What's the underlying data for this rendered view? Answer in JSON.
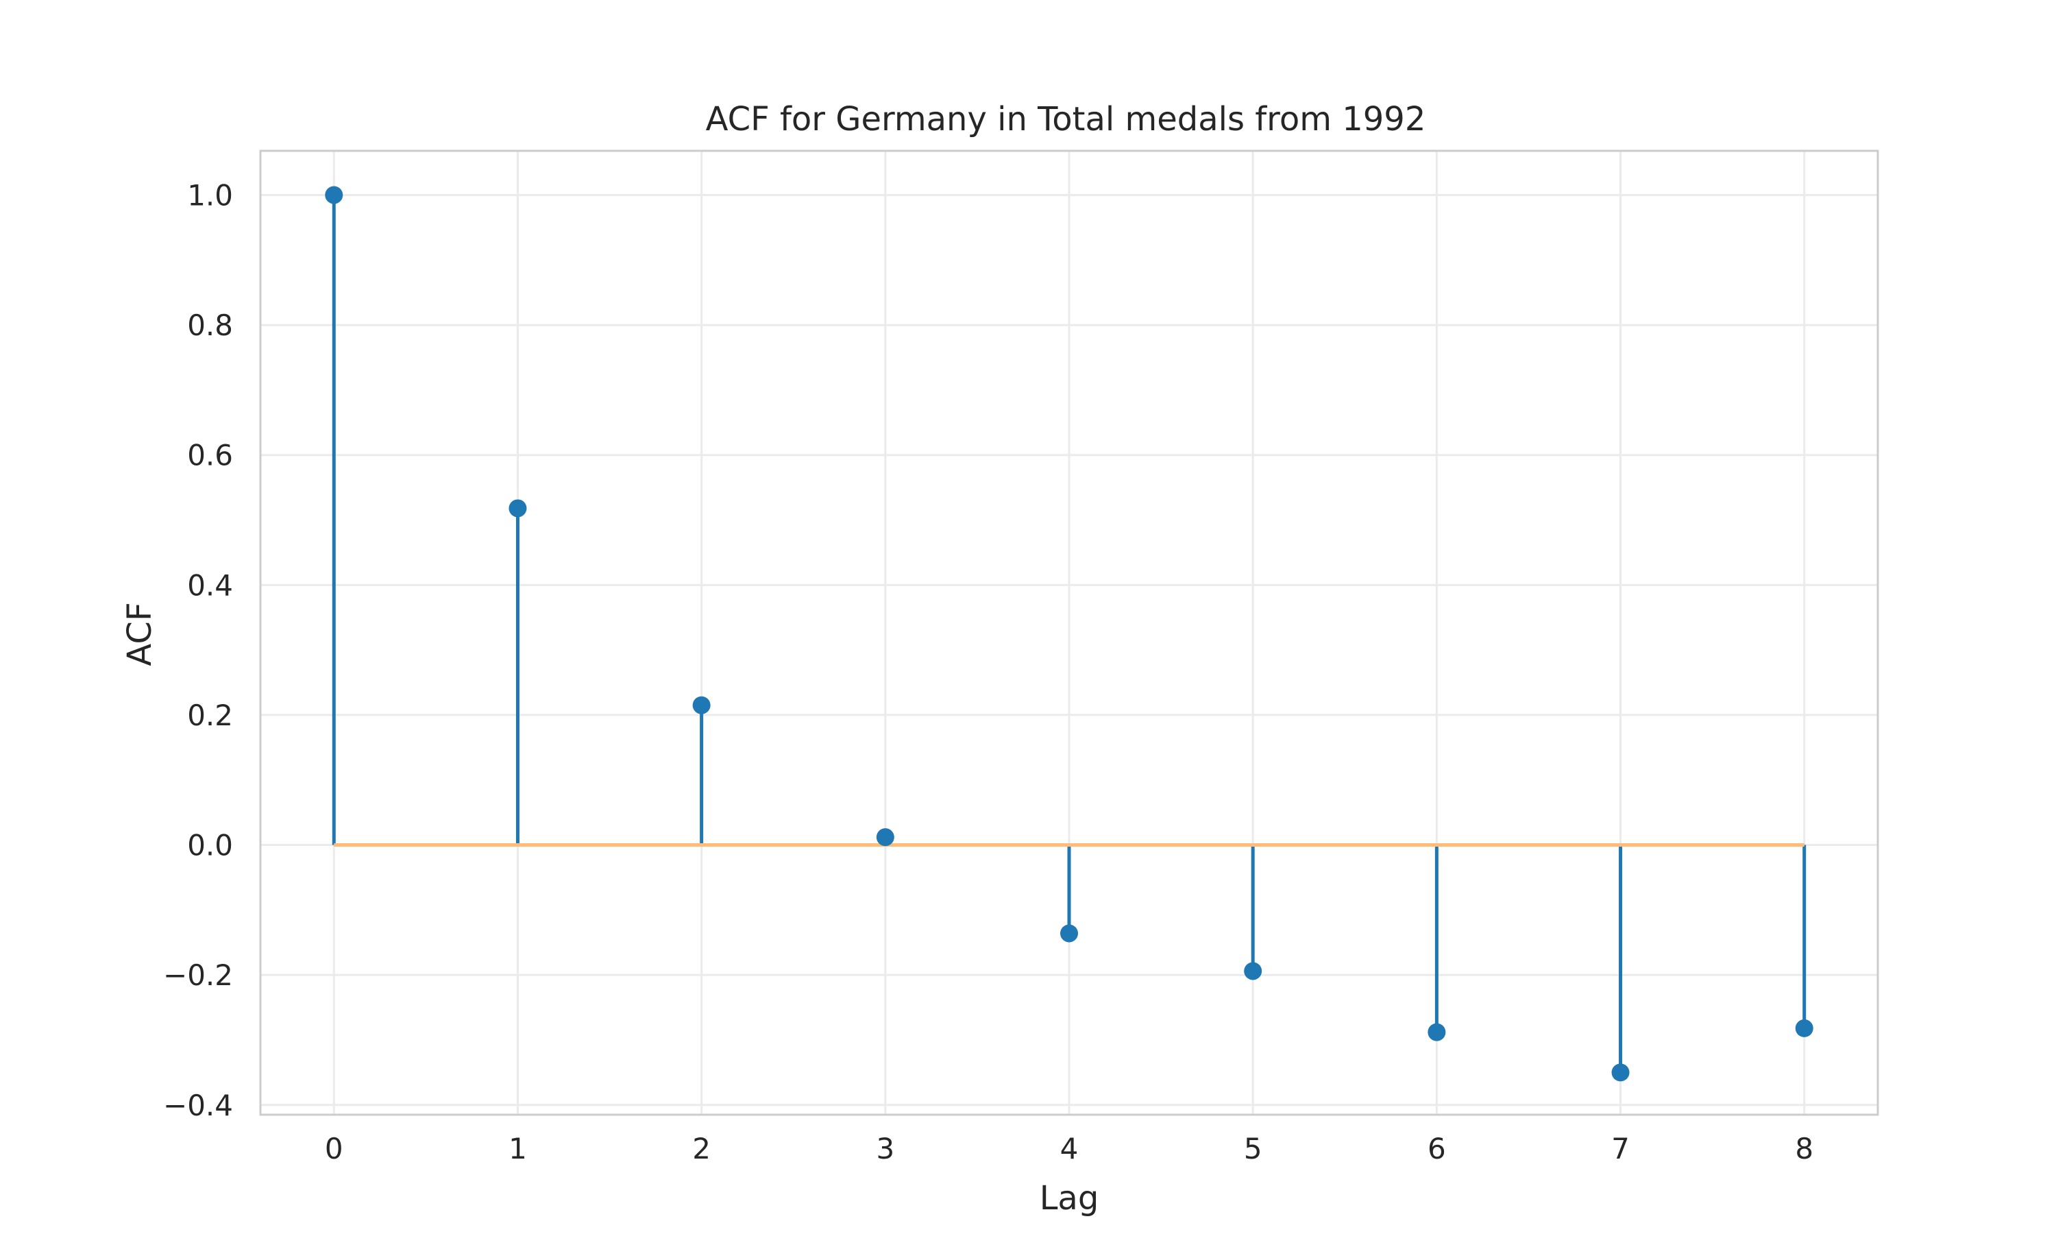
{
  "chart_data": {
    "type": "stem",
    "title": "ACF for Germany in Total medals from 1992",
    "xlabel": "Lag",
    "ylabel": "ACF",
    "x": [
      0,
      1,
      2,
      3,
      4,
      5,
      6,
      7,
      8
    ],
    "values": [
      1.0,
      0.518,
      0.215,
      0.012,
      -0.136,
      -0.194,
      -0.288,
      -0.35,
      -0.282
    ],
    "xlim": [
      -0.4,
      8.4
    ],
    "ylim": [
      -0.415,
      1.068
    ],
    "xticks": [
      0,
      1,
      2,
      3,
      4,
      5,
      6,
      7,
      8
    ],
    "yticks": [
      1.0,
      0.8,
      0.6,
      0.4,
      0.2,
      0.0,
      -0.2,
      -0.4
    ],
    "xtick_labels": [
      "0",
      "1",
      "2",
      "3",
      "4",
      "5",
      "6",
      "7",
      "8"
    ],
    "ytick_labels": [
      "1.0",
      "0.8",
      "0.6",
      "0.4",
      "0.2",
      "0.0",
      "−0.2",
      "−0.4"
    ],
    "grid": true,
    "colors": {
      "stem": "#1f77b4",
      "marker": "#1f77b4",
      "baseline": "#ffbb78",
      "grid": "#ebebeb",
      "frame": "#cccccc",
      "text": "#262626"
    }
  }
}
